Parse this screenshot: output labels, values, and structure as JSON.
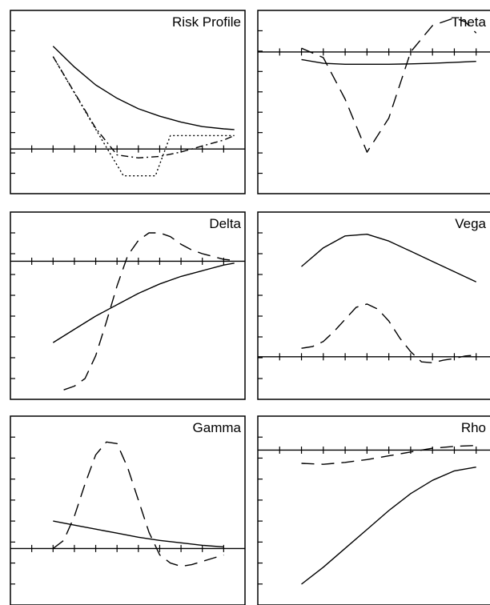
{
  "line_color": "#000000",
  "background_color": "#ffffff",
  "chart_data": [
    {
      "type": "line",
      "title": "Risk Profile",
      "xlim": [
        0,
        11
      ],
      "ylim": [
        -3,
        9.3
      ],
      "xticks": [
        1,
        2,
        3,
        4,
        5,
        6,
        7,
        8,
        9,
        10
      ],
      "grid": false,
      "series": [
        {
          "style": "solid",
          "x": [
            2,
            3,
            4,
            5,
            6,
            7,
            8,
            9,
            10,
            10.5
          ],
          "y": [
            6.9,
            5.5,
            4.3,
            3.4,
            2.7,
            2.2,
            1.8,
            1.5,
            1.35,
            1.3
          ]
        },
        {
          "style": "dashdot",
          "x": [
            2,
            3,
            4,
            5,
            6,
            7,
            8,
            9,
            10,
            10.5
          ],
          "y": [
            6.2,
            3.8,
            1.4,
            -0.4,
            -0.6,
            -0.5,
            -0.2,
            0.2,
            0.6,
            0.9
          ]
        },
        {
          "style": "dotted",
          "x": [
            2,
            4.3,
            5.3,
            6.8,
            7.5,
            10.5
          ],
          "y": [
            6.2,
            0.6,
            -1.8,
            -1.8,
            0.9,
            0.9
          ]
        }
      ]
    },
    {
      "type": "line",
      "title": "Theta",
      "xlim": [
        0,
        11
      ],
      "ylim": [
        -7.5,
        2.2
      ],
      "xticks": [
        1,
        2,
        3,
        4,
        5,
        6,
        7,
        8,
        9,
        10
      ],
      "grid": false,
      "series": [
        {
          "style": "solid",
          "x": [
            2,
            3,
            4,
            5,
            6,
            7,
            8,
            9,
            10
          ],
          "y": [
            -0.4,
            -0.6,
            -0.65,
            -0.65,
            -0.65,
            -0.63,
            -0.6,
            -0.55,
            -0.5
          ]
        },
        {
          "style": "dashed",
          "x": [
            2,
            3,
            4,
            5,
            6,
            7,
            8,
            9,
            9.5,
            10
          ],
          "y": [
            0.2,
            -0.3,
            -2.5,
            -5.3,
            -3.5,
            0,
            1.4,
            1.8,
            1.6,
            1.0
          ]
        }
      ]
    },
    {
      "type": "line",
      "title": "Delta",
      "xlim": [
        0,
        11
      ],
      "ylim": [
        -7.3,
        2.6
      ],
      "xticks": [
        1,
        2,
        3,
        4,
        5,
        6,
        7,
        8,
        9,
        10
      ],
      "grid": false,
      "series": [
        {
          "style": "solid",
          "x": [
            2,
            3,
            4,
            5,
            6,
            7,
            8,
            9,
            10,
            10.5
          ],
          "y": [
            -4.3,
            -3.6,
            -2.9,
            -2.3,
            -1.7,
            -1.2,
            -0.8,
            -0.5,
            -0.2,
            -0.1
          ]
        },
        {
          "style": "dashed",
          "x": [
            2.5,
            3,
            3.5,
            4,
            4.5,
            5,
            5.5,
            6,
            6.5,
            7,
            7.5,
            8,
            8.5,
            9,
            9.5,
            10,
            10.5
          ],
          "y": [
            -6.8,
            -6.6,
            -6.2,
            -5.0,
            -3.2,
            -1.3,
            0.3,
            1.1,
            1.5,
            1.5,
            1.3,
            0.9,
            0.6,
            0.4,
            0.25,
            0.1,
            0.05
          ]
        }
      ]
    },
    {
      "type": "line",
      "title": "Vega",
      "xlim": [
        0,
        11
      ],
      "ylim": [
        -2.5,
        8.5
      ],
      "xticks": [
        1,
        2,
        3,
        4,
        5,
        6,
        7,
        8,
        9,
        10
      ],
      "grid": false,
      "series": [
        {
          "style": "solid",
          "x": [
            2,
            3,
            4,
            5,
            6,
            7,
            8,
            9,
            10
          ],
          "y": [
            5.3,
            6.4,
            7.1,
            7.2,
            6.8,
            6.2,
            5.6,
            5.0,
            4.4
          ]
        },
        {
          "style": "dashed",
          "x": [
            2,
            2.5,
            3,
            3.5,
            4,
            4.5,
            5,
            5.5,
            6,
            6.5,
            7,
            7.5,
            8,
            8.5,
            9,
            9.5,
            10
          ],
          "y": [
            0.5,
            0.6,
            0.9,
            1.5,
            2.2,
            2.9,
            3.1,
            2.8,
            2.1,
            1.1,
            0.3,
            -0.3,
            -0.35,
            -0.2,
            -0.1,
            0.05,
            0.1
          ]
        }
      ]
    },
    {
      "type": "line",
      "title": "Gamma",
      "xlim": [
        0,
        11
      ],
      "ylim": [
        -3.5,
        8.2
      ],
      "xticks": [
        1,
        2,
        3,
        4,
        5,
        6,
        7,
        8,
        9,
        10
      ],
      "grid": false,
      "series": [
        {
          "style": "solid",
          "x": [
            2,
            3,
            4,
            5,
            6,
            7,
            8,
            9,
            10
          ],
          "y": [
            1.7,
            1.45,
            1.2,
            0.95,
            0.7,
            0.5,
            0.35,
            0.2,
            0.1
          ]
        },
        {
          "style": "dashed",
          "x": [
            2,
            2.5,
            3,
            3.5,
            4,
            4.5,
            5,
            5.5,
            6,
            6.5,
            7,
            7.5,
            8,
            8.5,
            9,
            9.5,
            10
          ],
          "y": [
            0,
            0.5,
            2.0,
            4.0,
            5.8,
            6.6,
            6.5,
            5.0,
            3.0,
            1.0,
            -0.4,
            -0.9,
            -1.1,
            -1.0,
            -0.8,
            -0.6,
            -0.4
          ]
        }
      ]
    },
    {
      "type": "line",
      "title": "Rho",
      "xlim": [
        0,
        11
      ],
      "ylim": [
        -8.2,
        1.8
      ],
      "xticks": [
        1,
        2,
        3,
        4,
        5,
        6,
        7,
        8,
        9,
        10
      ],
      "grid": false,
      "series": [
        {
          "style": "solid",
          "x": [
            2,
            3,
            4,
            5,
            6,
            7,
            8,
            9,
            10
          ],
          "y": [
            -7.1,
            -6.2,
            -5.2,
            -4.2,
            -3.2,
            -2.3,
            -1.6,
            -1.1,
            -0.9
          ]
        },
        {
          "style": "dashed",
          "x": [
            2,
            3,
            4,
            5,
            6,
            7,
            8,
            9,
            10
          ],
          "y": [
            -0.7,
            -0.75,
            -0.65,
            -0.5,
            -0.3,
            -0.1,
            0.1,
            0.2,
            0.25
          ]
        }
      ]
    }
  ]
}
